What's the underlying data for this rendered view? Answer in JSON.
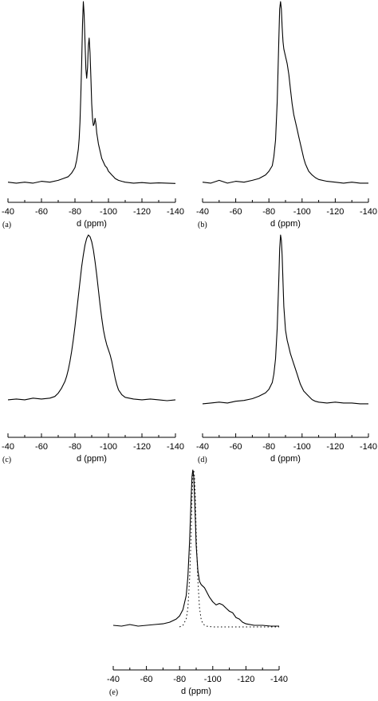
{
  "chart_data": [
    {
      "type": "line",
      "panel_label": "(a)",
      "xlabel": "d (ppm)",
      "xlim": [
        -40,
        -140
      ],
      "xticks": [
        "-40",
        "-60",
        "-80",
        "-100",
        "-120",
        "-140"
      ],
      "series": [
        {
          "style": "solid",
          "x": [
            -40,
            -45,
            -50,
            -55,
            -60,
            -65,
            -70,
            -73,
            -76,
            -78,
            -80,
            -81,
            -82,
            -82.5,
            -83,
            -83.5,
            -84,
            -84.5,
            -85,
            -85.5,
            -86,
            -86.5,
            -87,
            -87.5,
            -88,
            -88.5,
            -89,
            -89.5,
            -90,
            -90.5,
            -91,
            -91.5,
            -92,
            -92.5,
            -93,
            -93.5,
            -94,
            -95,
            -96,
            -97,
            -98,
            -99,
            -100,
            -101,
            -102,
            -103,
            -104,
            -106,
            -108,
            -110,
            -115,
            -120,
            -125,
            -130,
            -135,
            -140
          ],
          "y": [
            1,
            0.5,
            1,
            0.5,
            1.5,
            1,
            2,
            3,
            4,
            6,
            9,
            13,
            19,
            25,
            34,
            48,
            66,
            88,
            100,
            93,
            78,
            63,
            58,
            64,
            76,
            80,
            72,
            58,
            44,
            36,
            32,
            33,
            36,
            33,
            28,
            25,
            22,
            18,
            14,
            12,
            10,
            9,
            7,
            6,
            5,
            4,
            3,
            2,
            1.5,
            1,
            0.5,
            0.8,
            0.4,
            0.6,
            0.5,
            0.3
          ]
        }
      ]
    },
    {
      "type": "line",
      "panel_label": "(b)",
      "xlabel": "d (ppm)",
      "xlim": [
        -40,
        -140
      ],
      "xticks": [
        "-40",
        "-60",
        "-80",
        "-100",
        "-120",
        "-140"
      ],
      "series": [
        {
          "style": "solid",
          "x": [
            -40,
            -45,
            -50,
            -55,
            -60,
            -65,
            -70,
            -74,
            -78,
            -80,
            -82,
            -83,
            -84,
            -85,
            -86,
            -86.5,
            -87,
            -87.5,
            -88,
            -88.5,
            -89,
            -90,
            -91,
            -92,
            -93,
            -94,
            -95,
            -96,
            -97,
            -98,
            -99,
            -100,
            -101,
            -102,
            -103,
            -104,
            -106,
            -108,
            -110,
            -115,
            -120,
            -125,
            -130,
            -135,
            -140
          ],
          "y": [
            1,
            0.5,
            2,
            0.5,
            1.5,
            1,
            2,
            3,
            5,
            7,
            10,
            15,
            24,
            45,
            80,
            96,
            100,
            96,
            86,
            78,
            74,
            70,
            66,
            60,
            52,
            44,
            38,
            34,
            30,
            26,
            22,
            18,
            14,
            11,
            9,
            7,
            5,
            3.5,
            2.5,
            1.5,
            1,
            0.5,
            1,
            0.5,
            0.5
          ]
        }
      ]
    },
    {
      "type": "line",
      "panel_label": "(c)",
      "xlabel": "d (ppm)",
      "xlim": [
        -40,
        -140
      ],
      "xticks": [
        "-40",
        "-60",
        "-80",
        "-100",
        "-120",
        "-140"
      ],
      "series": [
        {
          "style": "solid",
          "x": [
            -40,
            -45,
            -50,
            -55,
            -60,
            -65,
            -68,
            -70,
            -72,
            -74,
            -75,
            -76,
            -77,
            -78,
            -79,
            -80,
            -81,
            -82,
            -83,
            -84,
            -85,
            -86,
            -87,
            -88,
            -89,
            -90,
            -91,
            -92,
            -93,
            -94,
            -95,
            -96,
            -97,
            -98,
            -99,
            -100,
            -101,
            -102,
            -103,
            -104,
            -105,
            -106,
            -108,
            -110,
            -115,
            -120,
            -125,
            -130,
            -135,
            -140
          ],
          "y": [
            1,
            1.5,
            1,
            2,
            1.5,
            2,
            3,
            5,
            8,
            12,
            15,
            19,
            24,
            30,
            37,
            45,
            54,
            63,
            72,
            81,
            88,
            94,
            98,
            100,
            99,
            96,
            91,
            84,
            76,
            67,
            58,
            50,
            43,
            38,
            34,
            31,
            28,
            24,
            19,
            14,
            10,
            7,
            4,
            2.5,
            1.5,
            1,
            1.5,
            1,
            0.5,
            1
          ]
        }
      ]
    },
    {
      "type": "line",
      "panel_label": "(d)",
      "xlabel": "d (ppm)",
      "xlim": [
        -40,
        -140
      ],
      "xticks": [
        "-40",
        "-60",
        "-80",
        "-100",
        "-120",
        "-140"
      ],
      "series": [
        {
          "style": "solid",
          "x": [
            -40,
            -45,
            -50,
            -55,
            -60,
            -65,
            -70,
            -74,
            -78,
            -80,
            -82,
            -83,
            -84,
            -85,
            -86,
            -86.5,
            -87,
            -87.5,
            -88,
            -88.5,
            -89,
            -90,
            -91,
            -92,
            -93,
            -94,
            -95,
            -96,
            -97,
            -98,
            -99,
            -100,
            -101,
            -102,
            -103,
            -104,
            -106,
            -108,
            -110,
            -115,
            -120,
            -125,
            -130,
            -135,
            -140
          ],
          "y": [
            0.5,
            1,
            1.5,
            1,
            2,
            2.5,
            3.5,
            5,
            7,
            9,
            13,
            18,
            27,
            45,
            75,
            92,
            100,
            97,
            88,
            72,
            58,
            44,
            38,
            34,
            30,
            27,
            24,
            21,
            18,
            15,
            12,
            10,
            8,
            7,
            6,
            5,
            3,
            2,
            1.5,
            1,
            1.5,
            1,
            1,
            0.5,
            0.5
          ]
        }
      ]
    },
    {
      "type": "line",
      "panel_label": "(e)",
      "xlabel": "d (ppm)",
      "xlim": [
        -40,
        -140
      ],
      "xticks": [
        "-40",
        "-60",
        "-80",
        "-100",
        "-120",
        "-140"
      ],
      "series": [
        {
          "style": "solid",
          "x": [
            -40,
            -45,
            -50,
            -55,
            -60,
            -65,
            -70,
            -74,
            -78,
            -80,
            -82,
            -84,
            -85,
            -86,
            -87,
            -87.5,
            -88,
            -88.5,
            -89,
            -89.5,
            -90,
            -91,
            -92,
            -93,
            -94,
            -95,
            -96,
            -98,
            -100,
            -102,
            -104,
            -106,
            -108,
            -110,
            -112,
            -114,
            -116,
            -118,
            -120,
            -125,
            -130,
            -135,
            -140
          ],
          "y": [
            1,
            0.5,
            1.5,
            0.5,
            1,
            1.5,
            2,
            3,
            5,
            7,
            11,
            20,
            32,
            54,
            84,
            96,
            100,
            96,
            84,
            68,
            52,
            36,
            29,
            27,
            26,
            25,
            23,
            19,
            16,
            14,
            15,
            14,
            12,
            10,
            9,
            6,
            5,
            3,
            2,
            1,
            1,
            0.5,
            0.5
          ]
        },
        {
          "style": "dotted",
          "x": [
            -80,
            -82,
            -84,
            -85,
            -86,
            -87,
            -87.5,
            -88,
            -88.5,
            -89,
            -89.5,
            -90,
            -91,
            -92,
            -93,
            -94,
            -96,
            -100,
            -110,
            -120,
            -130,
            -140
          ],
          "y": [
            0,
            1,
            5,
            12,
            30,
            60,
            82,
            96,
            100,
            96,
            82,
            60,
            30,
            12,
            5,
            2,
            0.5,
            0,
            0,
            0,
            0,
            0
          ]
        }
      ]
    }
  ]
}
